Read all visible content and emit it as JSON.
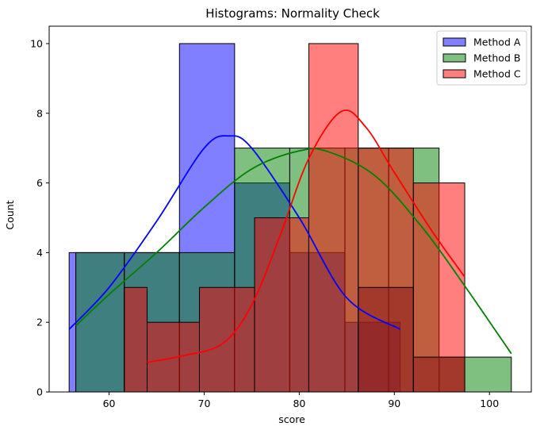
{
  "chart_data": {
    "type": "histogram",
    "title": "Histograms: Normality Check",
    "xlabel": "score",
    "ylabel": "Count",
    "xlim": [
      53.7,
      104.4
    ],
    "ylim": [
      0,
      10.5
    ],
    "xticks": [
      60,
      70,
      80,
      90,
      100
    ],
    "yticks": [
      0,
      2,
      4,
      6,
      8,
      10
    ],
    "grid": false,
    "legend_position": "top-right",
    "series": [
      {
        "name": "Method A",
        "color": "#0000ff",
        "kde_color": "#0000ff",
        "bins": [
          {
            "x0": 55.8,
            "x1": 56.5,
            "count": 4
          },
          {
            "x0": 56.5,
            "x1": 61.6,
            "count": 4
          },
          {
            "x0": 61.6,
            "x1": 67.4,
            "count": 4
          },
          {
            "x0": 67.4,
            "x1": 73.2,
            "count": 10
          },
          {
            "x0": 73.2,
            "x1": 79.0,
            "count": 6
          },
          {
            "x0": 79.0,
            "x1": 84.8,
            "count": 4
          },
          {
            "x0": 84.8,
            "x1": 90.6,
            "count": 2
          }
        ],
        "kde": [
          [
            55.8,
            1.8
          ],
          [
            60,
            3.0
          ],
          [
            65,
            4.9
          ],
          [
            70,
            7.0
          ],
          [
            72.6,
            7.35
          ],
          [
            75,
            7.0
          ],
          [
            80,
            5.0
          ],
          [
            85,
            2.7
          ],
          [
            90.6,
            1.8
          ]
        ]
      },
      {
        "name": "Method B",
        "color": "#008000",
        "kde_color": "#008000",
        "bins": [
          {
            "x0": 56.5,
            "x1": 61.6,
            "count": 4
          },
          {
            "x0": 61.6,
            "x1": 67.4,
            "count": 4
          },
          {
            "x0": 67.4,
            "x1": 73.2,
            "count": 4
          },
          {
            "x0": 73.2,
            "x1": 79.0,
            "count": 7
          },
          {
            "x0": 79.0,
            "x1": 84.8,
            "count": 7
          },
          {
            "x0": 84.8,
            "x1": 89.4,
            "count": 7
          },
          {
            "x0": 89.4,
            "x1": 94.7,
            "count": 7
          },
          {
            "x0": 94.7,
            "x1": 102.3,
            "count": 1
          }
        ],
        "kde": [
          [
            56.5,
            1.9
          ],
          [
            60,
            2.8
          ],
          [
            65,
            4.0
          ],
          [
            70,
            5.3
          ],
          [
            75,
            6.4
          ],
          [
            80,
            6.92
          ],
          [
            83,
            6.9
          ],
          [
            88,
            6.2
          ],
          [
            93,
            4.7
          ],
          [
            97,
            3.2
          ],
          [
            102.3,
            1.1
          ]
        ]
      },
      {
        "name": "Method C",
        "color": "#ff0000",
        "kde_color": "#ff0000",
        "bins": [
          {
            "x0": 61.6,
            "x1": 64.0,
            "count": 3
          },
          {
            "x0": 64.0,
            "x1": 69.5,
            "count": 2
          },
          {
            "x0": 69.5,
            "x1": 75.3,
            "count": 3
          },
          {
            "x0": 75.3,
            "x1": 81.0,
            "count": 5
          },
          {
            "x0": 81.0,
            "x1": 86.2,
            "count": 10
          },
          {
            "x0": 86.2,
            "x1": 92.0,
            "count": 7
          },
          {
            "x0": 92.0,
            "x1": 97.4,
            "count": 6
          }
        ],
        "kde": [
          [
            64,
            0.85
          ],
          [
            68,
            1.05
          ],
          [
            72,
            1.4
          ],
          [
            75,
            2.5
          ],
          [
            78,
            4.5
          ],
          [
            81,
            6.7
          ],
          [
            84.4,
            8.05
          ],
          [
            87,
            7.6
          ],
          [
            90,
            6.3
          ],
          [
            94,
            4.6
          ],
          [
            97.4,
            3.3
          ]
        ]
      }
    ],
    "overlay_bins": [
      {
        "x0": 86.2,
        "x1": 92.0,
        "count": 3
      },
      {
        "x0": 92.0,
        "x1": 97.4,
        "count": 1
      }
    ]
  }
}
